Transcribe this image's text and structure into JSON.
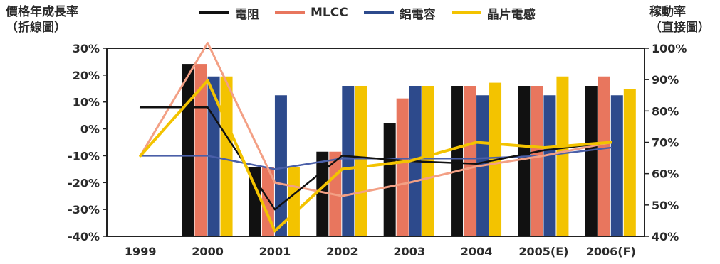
{
  "chart_data": {
    "type": "bar+line",
    "left_axis_label": "價格年成長率\n（折線圖）",
    "right_axis_label": "稼動率\n（直接圖）",
    "categories": [
      "1999",
      "2000",
      "2001",
      "2002",
      "2003",
      "2004",
      "2005(E)",
      "2006(F)"
    ],
    "left_ticks": [
      "30%",
      "20%",
      "10%",
      "0%",
      "-10%",
      "-20%",
      "-30%",
      "-40%"
    ],
    "right_ticks": [
      "100%",
      "90%",
      "80%",
      "70%",
      "60%",
      "50%",
      "40%"
    ],
    "left_ylim": [
      -40,
      30
    ],
    "right_ylim": [
      40,
      100
    ],
    "legend_position": "top",
    "series": [
      {
        "name": "電阻",
        "color": "#111111",
        "bars": [
          null,
          95,
          62,
          67,
          76,
          88,
          88,
          88
        ],
        "line": [
          8,
          8,
          -30,
          -10,
          -12,
          -13,
          -8,
          -5
        ]
      },
      {
        "name": "MLCC",
        "color": "#e8765e",
        "bars": [
          null,
          95,
          62,
          67,
          84,
          88,
          88,
          91
        ],
        "line": [
          -10,
          32,
          -20,
          -25,
          -20,
          -14,
          -10,
          -5
        ]
      },
      {
        "name": "鋁電容",
        "color": "#2d4a8c",
        "bars": [
          null,
          91,
          85,
          88,
          88,
          85,
          85,
          85
        ],
        "line": [
          -10,
          -10,
          -15,
          -11,
          -11,
          -11,
          -10,
          -7
        ]
      },
      {
        "name": "晶片電感",
        "color": "#f3c300",
        "bars": [
          null,
          91,
          62,
          88,
          88,
          89,
          91,
          87
        ]
      }
    ],
    "yellow_line": [
      -10,
      18,
      -38,
      -15,
      -12,
      -5,
      -7,
      -5
    ],
    "grid": false
  }
}
